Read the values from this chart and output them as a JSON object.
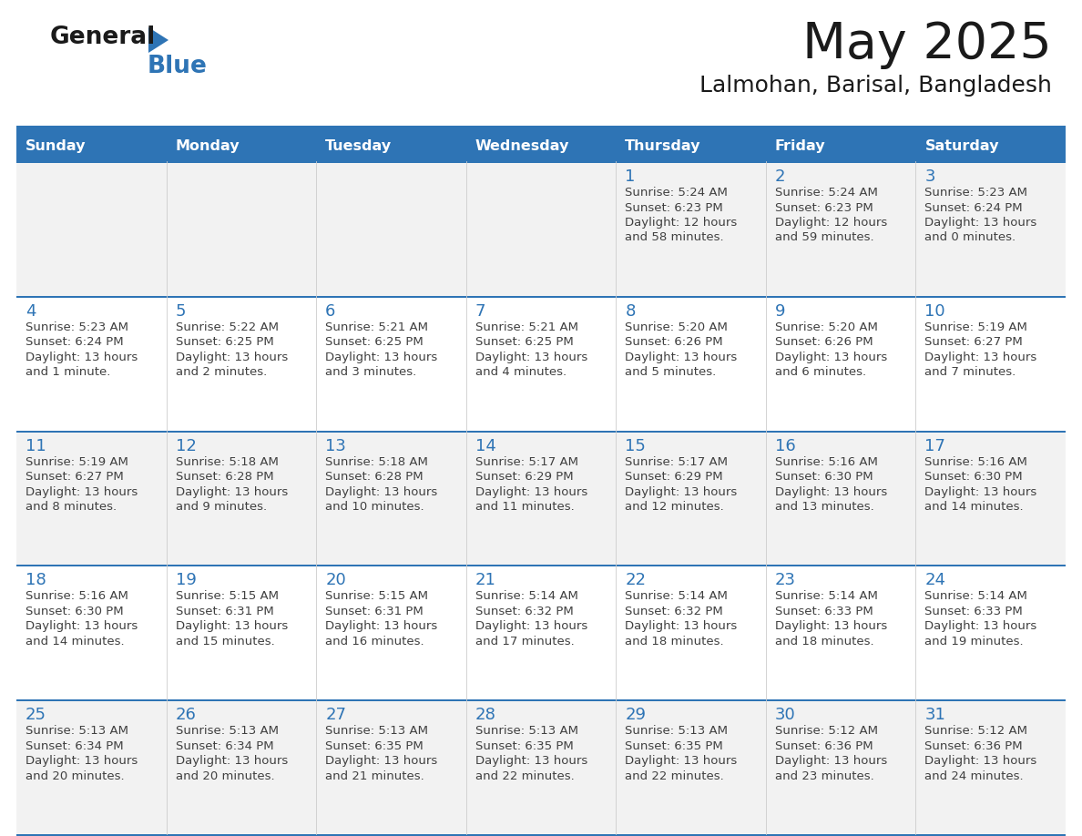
{
  "title": "May 2025",
  "subtitle": "Lalmohan, Barisal, Bangladesh",
  "days_of_week": [
    "Sunday",
    "Monday",
    "Tuesday",
    "Wednesday",
    "Thursday",
    "Friday",
    "Saturday"
  ],
  "header_bg": "#2E74B5",
  "header_text_color": "#FFFFFF",
  "row_bg_odd": "#F2F2F2",
  "row_bg_even": "#FFFFFF",
  "separator_color": "#2E74B5",
  "text_color": "#404040",
  "day_num_color": "#2E74B5",
  "calendar_data": [
    [
      null,
      null,
      null,
      null,
      {
        "day": 1,
        "sunrise": "5:24 AM",
        "sunset": "6:23 PM",
        "daylight_h": "12 hours",
        "daylight_m": "58 minutes"
      },
      {
        "day": 2,
        "sunrise": "5:24 AM",
        "sunset": "6:23 PM",
        "daylight_h": "12 hours",
        "daylight_m": "59 minutes"
      },
      {
        "day": 3,
        "sunrise": "5:23 AM",
        "sunset": "6:24 PM",
        "daylight_h": "13 hours",
        "daylight_m": "0 minutes"
      }
    ],
    [
      {
        "day": 4,
        "sunrise": "5:23 AM",
        "sunset": "6:24 PM",
        "daylight_h": "13 hours",
        "daylight_m": "1 minute"
      },
      {
        "day": 5,
        "sunrise": "5:22 AM",
        "sunset": "6:25 PM",
        "daylight_h": "13 hours",
        "daylight_m": "2 minutes"
      },
      {
        "day": 6,
        "sunrise": "5:21 AM",
        "sunset": "6:25 PM",
        "daylight_h": "13 hours",
        "daylight_m": "3 minutes"
      },
      {
        "day": 7,
        "sunrise": "5:21 AM",
        "sunset": "6:25 PM",
        "daylight_h": "13 hours",
        "daylight_m": "4 minutes"
      },
      {
        "day": 8,
        "sunrise": "5:20 AM",
        "sunset": "6:26 PM",
        "daylight_h": "13 hours",
        "daylight_m": "5 minutes"
      },
      {
        "day": 9,
        "sunrise": "5:20 AM",
        "sunset": "6:26 PM",
        "daylight_h": "13 hours",
        "daylight_m": "6 minutes"
      },
      {
        "day": 10,
        "sunrise": "5:19 AM",
        "sunset": "6:27 PM",
        "daylight_h": "13 hours",
        "daylight_m": "7 minutes"
      }
    ],
    [
      {
        "day": 11,
        "sunrise": "5:19 AM",
        "sunset": "6:27 PM",
        "daylight_h": "13 hours",
        "daylight_m": "8 minutes"
      },
      {
        "day": 12,
        "sunrise": "5:18 AM",
        "sunset": "6:28 PM",
        "daylight_h": "13 hours",
        "daylight_m": "9 minutes"
      },
      {
        "day": 13,
        "sunrise": "5:18 AM",
        "sunset": "6:28 PM",
        "daylight_h": "13 hours",
        "daylight_m": "10 minutes"
      },
      {
        "day": 14,
        "sunrise": "5:17 AM",
        "sunset": "6:29 PM",
        "daylight_h": "13 hours",
        "daylight_m": "11 minutes"
      },
      {
        "day": 15,
        "sunrise": "5:17 AM",
        "sunset": "6:29 PM",
        "daylight_h": "13 hours",
        "daylight_m": "12 minutes"
      },
      {
        "day": 16,
        "sunrise": "5:16 AM",
        "sunset": "6:30 PM",
        "daylight_h": "13 hours",
        "daylight_m": "13 minutes"
      },
      {
        "day": 17,
        "sunrise": "5:16 AM",
        "sunset": "6:30 PM",
        "daylight_h": "13 hours",
        "daylight_m": "14 minutes"
      }
    ],
    [
      {
        "day": 18,
        "sunrise": "5:16 AM",
        "sunset": "6:30 PM",
        "daylight_h": "13 hours",
        "daylight_m": "14 minutes"
      },
      {
        "day": 19,
        "sunrise": "5:15 AM",
        "sunset": "6:31 PM",
        "daylight_h": "13 hours",
        "daylight_m": "15 minutes"
      },
      {
        "day": 20,
        "sunrise": "5:15 AM",
        "sunset": "6:31 PM",
        "daylight_h": "13 hours",
        "daylight_m": "16 minutes"
      },
      {
        "day": 21,
        "sunrise": "5:14 AM",
        "sunset": "6:32 PM",
        "daylight_h": "13 hours",
        "daylight_m": "17 minutes"
      },
      {
        "day": 22,
        "sunrise": "5:14 AM",
        "sunset": "6:32 PM",
        "daylight_h": "13 hours",
        "daylight_m": "18 minutes"
      },
      {
        "day": 23,
        "sunrise": "5:14 AM",
        "sunset": "6:33 PM",
        "daylight_h": "13 hours",
        "daylight_m": "18 minutes"
      },
      {
        "day": 24,
        "sunrise": "5:14 AM",
        "sunset": "6:33 PM",
        "daylight_h": "13 hours",
        "daylight_m": "19 minutes"
      }
    ],
    [
      {
        "day": 25,
        "sunrise": "5:13 AM",
        "sunset": "6:34 PM",
        "daylight_h": "13 hours",
        "daylight_m": "20 minutes"
      },
      {
        "day": 26,
        "sunrise": "5:13 AM",
        "sunset": "6:34 PM",
        "daylight_h": "13 hours",
        "daylight_m": "20 minutes"
      },
      {
        "day": 27,
        "sunrise": "5:13 AM",
        "sunset": "6:35 PM",
        "daylight_h": "13 hours",
        "daylight_m": "21 minutes"
      },
      {
        "day": 28,
        "sunrise": "5:13 AM",
        "sunset": "6:35 PM",
        "daylight_h": "13 hours",
        "daylight_m": "22 minutes"
      },
      {
        "day": 29,
        "sunrise": "5:13 AM",
        "sunset": "6:35 PM",
        "daylight_h": "13 hours",
        "daylight_m": "22 minutes"
      },
      {
        "day": 30,
        "sunrise": "5:12 AM",
        "sunset": "6:36 PM",
        "daylight_h": "13 hours",
        "daylight_m": "23 minutes"
      },
      {
        "day": 31,
        "sunrise": "5:12 AM",
        "sunset": "6:36 PM",
        "daylight_h": "13 hours",
        "daylight_m": "24 minutes"
      }
    ]
  ],
  "logo_text1": "General",
  "logo_text2": "Blue",
  "logo_color1": "#1a1a1a",
  "logo_color2": "#2E74B5",
  "logo_triangle_color": "#2E74B5"
}
